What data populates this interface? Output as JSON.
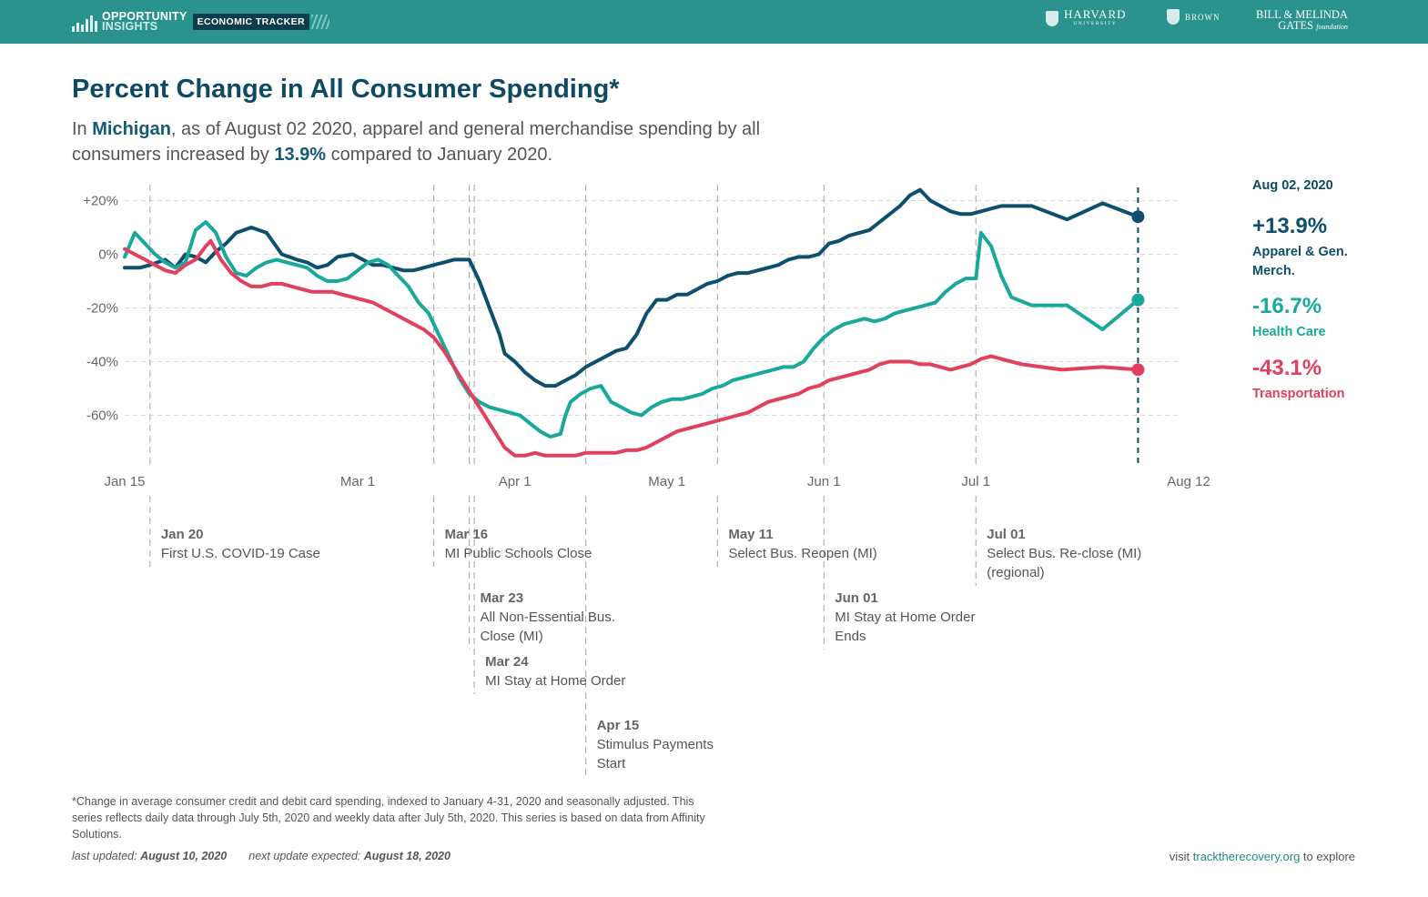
{
  "header": {
    "logo_line1": "OPPORTUNITY",
    "logo_line2": "INSIGHTS",
    "badge": "ECONOMIC TRACKER",
    "partners": {
      "harvard": "HARVARD",
      "harvard_sub": "UNIVERSITY",
      "brown": "BROWN",
      "gates_line1": "BILL & MELINDA",
      "gates_line2": "GATES",
      "gates_line2_suffix": "foundation"
    },
    "bar_color": "#2a9390"
  },
  "title": "Percent Change in All Consumer Spending*",
  "subtitle": {
    "p1": "In ",
    "state": "Michigan",
    "p2": ", as of August 02 2020, apparel and general merchandise spending by all consumers increased by ",
    "value": "13.9%",
    "p3": " compared to January 2020."
  },
  "side": {
    "date": "Aug 02, 2020",
    "items": [
      {
        "value": "+13.9%",
        "label": "Apparel & Gen. Merch."
      },
      {
        "value": "-16.7%",
        "label": "Health Care"
      },
      {
        "value": "-43.1%",
        "label": "Transportation"
      }
    ]
  },
  "footnote": {
    "text": "*Change in average consumer credit and debit card spending, indexed to January 4-31, 2020 and seasonally adjusted. This series reflects daily data through July 5th, 2020 and weekly data after July 5th, 2020. This series is based on data from Affinity Solutions.",
    "last_label": "last updated:",
    "last_date": "August 10, 2020",
    "next_label": "next update expected:",
    "next_date": "August 18, 2020",
    "visit_pre": "visit ",
    "visit_link": "tracktherecovery.org",
    "visit_post": " to explore"
  },
  "chart_data": {
    "type": "line",
    "x_ticks": [
      "Jan 15",
      "Mar 1",
      "Apr 1",
      "May 1",
      "Jun 1",
      "Jul 1",
      "Aug 12"
    ],
    "x_ticks_days": [
      15,
      61,
      92,
      122,
      153,
      183,
      225
    ],
    "y_ticks": [
      "+20%",
      "0%",
      "-20%",
      "-40%",
      "-60%"
    ],
    "y_ticks_values": [
      20,
      0,
      -20,
      -40,
      -60
    ],
    "ylim": [
      -78,
      25
    ],
    "x_unit": "day of year 2020",
    "grid": true,
    "end_day": 215,
    "series": [
      {
        "name": "Apparel & Gen. Merch.",
        "color": "#0f4f6e",
        "points": [
          [
            15,
            -5
          ],
          [
            18,
            -5
          ],
          [
            20,
            -4
          ],
          [
            23,
            -2
          ],
          [
            25,
            -5
          ],
          [
            27,
            0
          ],
          [
            29,
            -1
          ],
          [
            31,
            -3
          ],
          [
            33,
            1
          ],
          [
            35,
            4
          ],
          [
            37,
            8
          ],
          [
            40,
            10
          ],
          [
            43,
            8
          ],
          [
            46,
            0
          ],
          [
            49,
            -2
          ],
          [
            51,
            -3
          ],
          [
            53,
            -5
          ],
          [
            55,
            -4
          ],
          [
            57,
            -1
          ],
          [
            60,
            0
          ],
          [
            62,
            -2
          ],
          [
            64,
            -4
          ],
          [
            66,
            -4
          ],
          [
            68,
            -5
          ],
          [
            70,
            -6
          ],
          [
            72,
            -6
          ],
          [
            74,
            -5
          ],
          [
            76,
            -4
          ],
          [
            78,
            -3
          ],
          [
            80,
            -2
          ],
          [
            82,
            -2
          ],
          [
            83,
            -2
          ],
          [
            85,
            -10
          ],
          [
            87,
            -20
          ],
          [
            89,
            -30
          ],
          [
            90,
            -37
          ],
          [
            92,
            -40
          ],
          [
            94,
            -44
          ],
          [
            96,
            -47
          ],
          [
            98,
            -49
          ],
          [
            100,
            -49
          ],
          [
            102,
            -47
          ],
          [
            104,
            -45
          ],
          [
            106,
            -42
          ],
          [
            108,
            -40
          ],
          [
            110,
            -38
          ],
          [
            112,
            -36
          ],
          [
            114,
            -35
          ],
          [
            116,
            -30
          ],
          [
            118,
            -22
          ],
          [
            120,
            -17
          ],
          [
            122,
            -17
          ],
          [
            124,
            -15
          ],
          [
            126,
            -15
          ],
          [
            128,
            -13
          ],
          [
            130,
            -11
          ],
          [
            132,
            -10
          ],
          [
            134,
            -8
          ],
          [
            136,
            -7
          ],
          [
            138,
            -7
          ],
          [
            140,
            -6
          ],
          [
            142,
            -5
          ],
          [
            144,
            -4
          ],
          [
            146,
            -2
          ],
          [
            148,
            -1
          ],
          [
            150,
            -1
          ],
          [
            152,
            0
          ],
          [
            154,
            4
          ],
          [
            156,
            5
          ],
          [
            158,
            7
          ],
          [
            160,
            8
          ],
          [
            162,
            9
          ],
          [
            164,
            12
          ],
          [
            166,
            15
          ],
          [
            168,
            18
          ],
          [
            170,
            22
          ],
          [
            172,
            24
          ],
          [
            174,
            20
          ],
          [
            176,
            18
          ],
          [
            178,
            16
          ],
          [
            180,
            15
          ],
          [
            182,
            15
          ],
          [
            184,
            16
          ],
          [
            186,
            17
          ],
          [
            188,
            18
          ],
          [
            190,
            18
          ],
          [
            194,
            18
          ],
          [
            201,
            13
          ],
          [
            208,
            19
          ],
          [
            215,
            14
          ]
        ]
      },
      {
        "name": "Health Care",
        "color": "#19a89b",
        "points": [
          [
            15,
            -1
          ],
          [
            17,
            8
          ],
          [
            19,
            4
          ],
          [
            21,
            0
          ],
          [
            23,
            -3
          ],
          [
            25,
            -5
          ],
          [
            27,
            -3
          ],
          [
            29,
            9
          ],
          [
            31,
            12
          ],
          [
            33,
            8
          ],
          [
            35,
            -1
          ],
          [
            37,
            -7
          ],
          [
            39,
            -8
          ],
          [
            41,
            -5
          ],
          [
            43,
            -3
          ],
          [
            45,
            -2
          ],
          [
            47,
            -3
          ],
          [
            49,
            -4
          ],
          [
            51,
            -5
          ],
          [
            53,
            -8
          ],
          [
            55,
            -10
          ],
          [
            57,
            -10
          ],
          [
            59,
            -9
          ],
          [
            61,
            -6
          ],
          [
            63,
            -3
          ],
          [
            65,
            -2
          ],
          [
            67,
            -4
          ],
          [
            69,
            -8
          ],
          [
            71,
            -12
          ],
          [
            73,
            -18
          ],
          [
            75,
            -22
          ],
          [
            77,
            -30
          ],
          [
            79,
            -38
          ],
          [
            81,
            -46
          ],
          [
            83,
            -52
          ],
          [
            85,
            -55
          ],
          [
            87,
            -57
          ],
          [
            89,
            -58
          ],
          [
            91,
            -59
          ],
          [
            93,
            -60
          ],
          [
            95,
            -63
          ],
          [
            97,
            -66
          ],
          [
            99,
            -68
          ],
          [
            101,
            -67
          ],
          [
            102,
            -60
          ],
          [
            103,
            -55
          ],
          [
            105,
            -52
          ],
          [
            107,
            -50
          ],
          [
            109,
            -49
          ],
          [
            111,
            -55
          ],
          [
            113,
            -57
          ],
          [
            115,
            -59
          ],
          [
            117,
            -60
          ],
          [
            119,
            -57
          ],
          [
            121,
            -55
          ],
          [
            123,
            -54
          ],
          [
            125,
            -54
          ],
          [
            127,
            -53
          ],
          [
            129,
            -52
          ],
          [
            131,
            -50
          ],
          [
            133,
            -49
          ],
          [
            135,
            -47
          ],
          [
            137,
            -46
          ],
          [
            139,
            -45
          ],
          [
            141,
            -44
          ],
          [
            143,
            -43
          ],
          [
            145,
            -42
          ],
          [
            147,
            -42
          ],
          [
            149,
            -40
          ],
          [
            151,
            -35
          ],
          [
            153,
            -31
          ],
          [
            155,
            -28
          ],
          [
            157,
            -26
          ],
          [
            159,
            -25
          ],
          [
            161,
            -24
          ],
          [
            163,
            -25
          ],
          [
            165,
            -24
          ],
          [
            167,
            -22
          ],
          [
            169,
            -21
          ],
          [
            171,
            -20
          ],
          [
            173,
            -19
          ],
          [
            175,
            -18
          ],
          [
            177,
            -14
          ],
          [
            179,
            -11
          ],
          [
            181,
            -9
          ],
          [
            183,
            -9
          ],
          [
            184,
            8
          ],
          [
            186,
            3
          ],
          [
            188,
            -8
          ],
          [
            190,
            -16
          ],
          [
            194,
            -19
          ],
          [
            201,
            -19
          ],
          [
            208,
            -28
          ],
          [
            215,
            -17
          ]
        ]
      },
      {
        "name": "Transportation",
        "color": "#e2405f",
        "points": [
          [
            15,
            2
          ],
          [
            17,
            0
          ],
          [
            19,
            -2
          ],
          [
            21,
            -4
          ],
          [
            23,
            -6
          ],
          [
            25,
            -7
          ],
          [
            27,
            -4
          ],
          [
            29,
            -2
          ],
          [
            31,
            3
          ],
          [
            32,
            5
          ],
          [
            34,
            -2
          ],
          [
            36,
            -7
          ],
          [
            38,
            -10
          ],
          [
            40,
            -12
          ],
          [
            42,
            -12
          ],
          [
            44,
            -11
          ],
          [
            46,
            -11
          ],
          [
            48,
            -12
          ],
          [
            50,
            -13
          ],
          [
            52,
            -14
          ],
          [
            54,
            -14
          ],
          [
            56,
            -14
          ],
          [
            58,
            -15
          ],
          [
            60,
            -16
          ],
          [
            62,
            -17
          ],
          [
            64,
            -18
          ],
          [
            66,
            -20
          ],
          [
            68,
            -22
          ],
          [
            70,
            -24
          ],
          [
            72,
            -26
          ],
          [
            74,
            -28
          ],
          [
            76,
            -31
          ],
          [
            78,
            -36
          ],
          [
            80,
            -42
          ],
          [
            82,
            -48
          ],
          [
            84,
            -54
          ],
          [
            86,
            -60
          ],
          [
            88,
            -66
          ],
          [
            90,
            -72
          ],
          [
            92,
            -75
          ],
          [
            94,
            -75
          ],
          [
            96,
            -74
          ],
          [
            98,
            -75
          ],
          [
            100,
            -75
          ],
          [
            102,
            -75
          ],
          [
            104,
            -75
          ],
          [
            106,
            -74
          ],
          [
            108,
            -74
          ],
          [
            110,
            -74
          ],
          [
            112,
            -74
          ],
          [
            114,
            -73
          ],
          [
            116,
            -73
          ],
          [
            118,
            -72
          ],
          [
            120,
            -70
          ],
          [
            122,
            -68
          ],
          [
            124,
            -66
          ],
          [
            126,
            -65
          ],
          [
            128,
            -64
          ],
          [
            130,
            -63
          ],
          [
            132,
            -62
          ],
          [
            134,
            -61
          ],
          [
            136,
            -60
          ],
          [
            138,
            -59
          ],
          [
            140,
            -57
          ],
          [
            142,
            -55
          ],
          [
            144,
            -54
          ],
          [
            146,
            -53
          ],
          [
            148,
            -52
          ],
          [
            150,
            -50
          ],
          [
            152,
            -49
          ],
          [
            154,
            -47
          ],
          [
            156,
            -46
          ],
          [
            158,
            -45
          ],
          [
            160,
            -44
          ],
          [
            162,
            -43
          ],
          [
            164,
            -41
          ],
          [
            166,
            -40
          ],
          [
            168,
            -40
          ],
          [
            170,
            -40
          ],
          [
            172,
            -41
          ],
          [
            174,
            -41
          ],
          [
            176,
            -42
          ],
          [
            178,
            -43
          ],
          [
            180,
            -42
          ],
          [
            182,
            -41
          ],
          [
            184,
            -39
          ],
          [
            186,
            -38
          ],
          [
            188,
            -39
          ],
          [
            192,
            -41
          ],
          [
            200,
            -43
          ],
          [
            208,
            -42
          ],
          [
            215,
            -43
          ]
        ]
      }
    ],
    "events": [
      {
        "day": 20,
        "date": "Jan 20",
        "lines": [
          "First U.S. COVID-19 Case"
        ],
        "row": 0
      },
      {
        "day": 76,
        "date": "Mar 16",
        "lines": [
          "MI Public Schools Close"
        ],
        "row": 0
      },
      {
        "day": 83,
        "date": "Mar 23",
        "lines": [
          "All Non-Essential Bus.",
          "Close (MI)"
        ],
        "row": 1
      },
      {
        "day": 84,
        "date": "Mar 24",
        "lines": [
          "MI Stay at Home Order"
        ],
        "row": 2
      },
      {
        "day": 106,
        "date": "Apr 15",
        "lines": [
          "Stimulus Payments",
          "Start"
        ],
        "row": 3
      },
      {
        "day": 132,
        "date": "May 11",
        "lines": [
          "Select Bus. Reopen (MI)"
        ],
        "row": 0
      },
      {
        "day": 153,
        "date": "Jun 01",
        "lines": [
          "MI Stay at Home Order",
          "Ends"
        ],
        "row": 1
      },
      {
        "day": 183,
        "date": "Jul 01",
        "lines": [
          "Select Bus. Re-close (MI)",
          "(regional)"
        ],
        "row": 0
      }
    ]
  }
}
